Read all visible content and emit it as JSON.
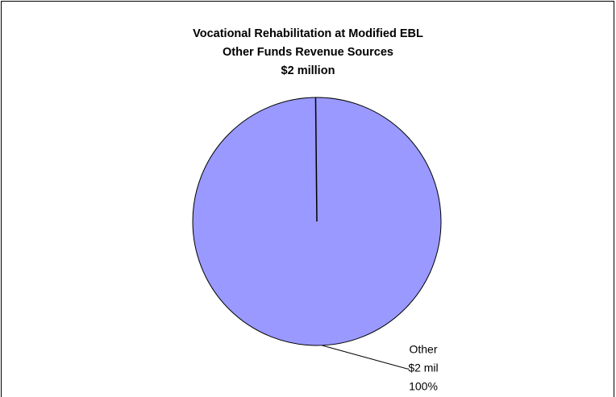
{
  "chart_data": {
    "type": "pie",
    "title": [
      "Vocational Rehabilitation at Modified EBL",
      "Other Funds Revenue Sources",
      "$2 million"
    ],
    "categories": [
      "Other"
    ],
    "values": [
      100
    ],
    "value_labels": [
      "100%"
    ],
    "amounts": [
      2
    ],
    "amount_labels": [
      "$2 mil"
    ],
    "colors": [
      "#9999ff"
    ]
  }
}
